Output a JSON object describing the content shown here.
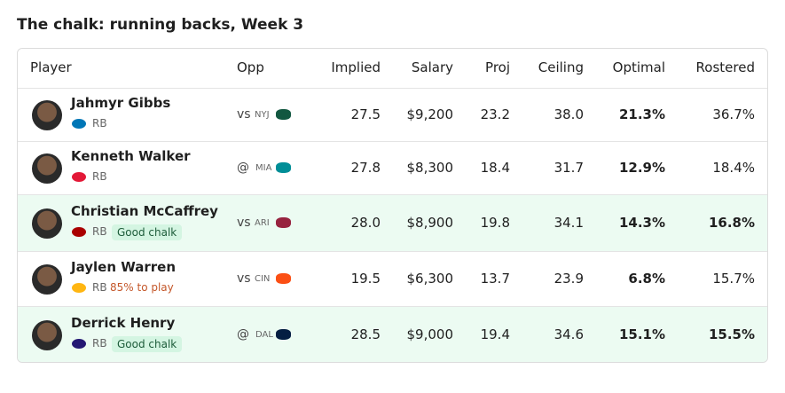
{
  "title": "The chalk: running backs, Week 3",
  "table": {
    "columns": [
      "Player",
      "Opp",
      "Implied",
      "Salary",
      "Proj",
      "Ceiling",
      "Optimal",
      "Rostered"
    ],
    "rows": [
      {
        "name": "Jahmyr Gibbs",
        "pos": "RB",
        "opp_prefix": "vs",
        "opp": "NYJ",
        "implied": "27.5",
        "salary": "$9,200",
        "proj": "23.2",
        "ceiling": "38.0",
        "optimal": "21.3%",
        "rostered": "36.7%"
      },
      {
        "name": "Kenneth Walker",
        "pos": "RB",
        "opp_prefix": "@",
        "opp": "MIA",
        "implied": "27.8",
        "salary": "$8,300",
        "proj": "18.4",
        "ceiling": "31.7",
        "optimal": "12.9%",
        "rostered": "18.4%"
      },
      {
        "name": "Christian McCaffrey",
        "pos": "RB",
        "tag": "Good chalk",
        "highlight": true,
        "opp_prefix": "vs",
        "opp": "ARI",
        "implied": "28.0",
        "salary": "$8,900",
        "proj": "19.8",
        "ceiling": "34.1",
        "optimal": "14.3%",
        "rostered": "16.8%"
      },
      {
        "name": "Jaylen Warren",
        "pos": "RB",
        "note": "85% to play",
        "opp_prefix": "vs",
        "opp": "CIN",
        "implied": "19.5",
        "salary": "$6,300",
        "proj": "13.7",
        "ceiling": "23.9",
        "optimal": "6.8%",
        "rostered": "15.7%"
      },
      {
        "name": "Derrick Henry",
        "pos": "RB",
        "tag": "Good chalk",
        "highlight": true,
        "opp_prefix": "@",
        "opp": "DAL",
        "implied": "28.5",
        "salary": "$9,000",
        "proj": "19.4",
        "ceiling": "34.6",
        "optimal": "15.1%",
        "rostered": "15.5%"
      }
    ]
  }
}
